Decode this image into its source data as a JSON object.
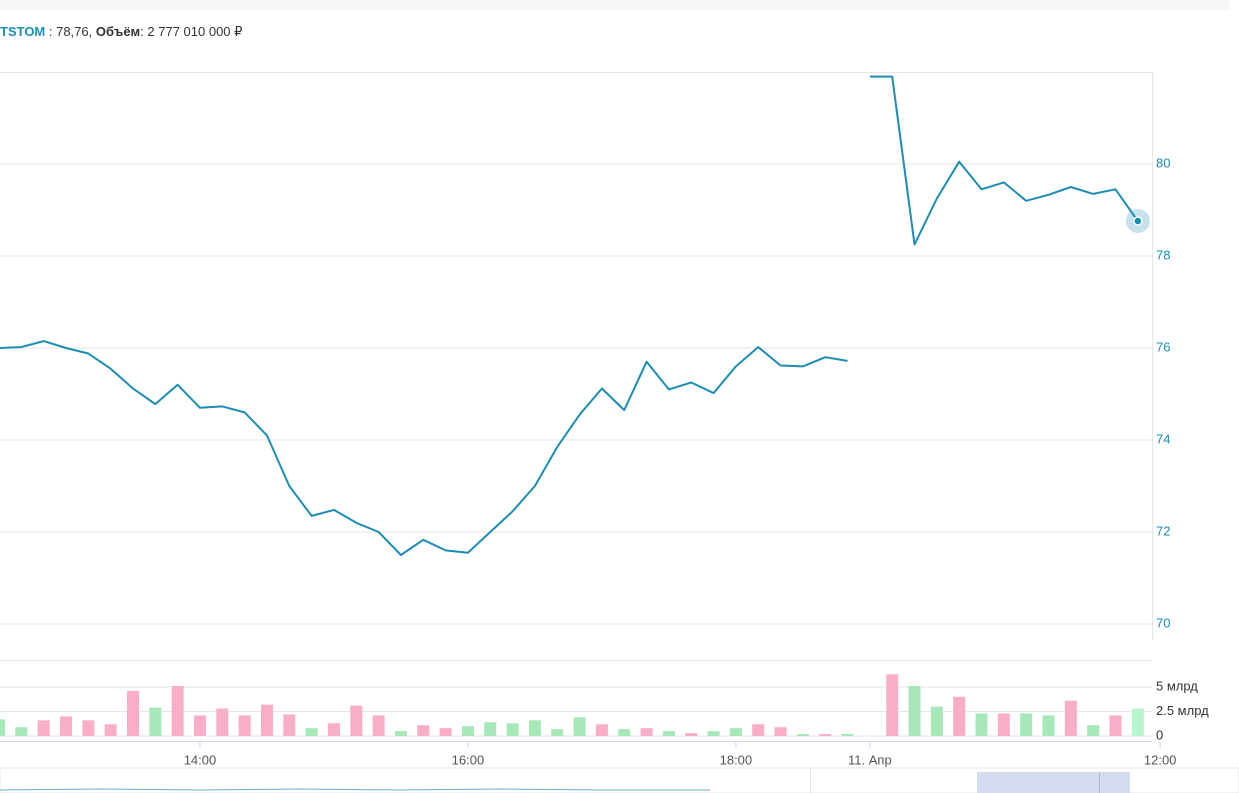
{
  "header": {
    "ticker": "TSTOM",
    "price_text": " : 78,76,",
    "volume_label": "Объём",
    "volume_text": ": 2 777 010 000 ₽"
  },
  "chart_data": [
    {
      "type": "line",
      "ylim": [
        70,
        82
      ],
      "yticks": [
        70,
        72,
        74,
        76,
        78,
        80
      ],
      "grid": true,
      "axis_color": "#1a8bb3",
      "series": [
        {
          "color": "#1b8db5",
          "values": [
            76.0,
            76.02,
            76.15,
            76.0,
            75.88,
            75.55,
            75.12,
            74.78,
            75.2,
            74.7,
            74.73,
            74.6,
            74.1,
            73.0,
            72.35,
            72.48,
            72.2,
            72.0,
            71.5,
            71.83,
            71.6,
            71.55,
            72.0,
            72.45,
            73.0,
            73.85,
            74.55,
            75.12,
            74.65,
            75.7,
            75.1,
            75.25,
            75.02,
            75.6,
            76.02,
            75.62,
            75.6,
            75.8,
            75.72,
            null,
            null,
            null,
            null,
            null,
            null,
            null,
            null,
            null,
            null,
            null,
            null,
            null,
            null
          ]
        },
        {
          "color": "#1b8db5",
          "values": [
            null,
            null,
            null,
            null,
            null,
            null,
            null,
            null,
            null,
            null,
            null,
            null,
            null,
            null,
            null,
            null,
            null,
            null,
            null,
            null,
            null,
            null,
            null,
            null,
            null,
            null,
            null,
            null,
            null,
            null,
            null,
            null,
            null,
            null,
            null,
            null,
            null,
            null,
            null,
            81.9,
            81.9,
            78.25,
            79.25,
            80.05,
            79.45,
            79.6,
            79.2,
            79.33,
            79.5,
            79.35,
            79.45,
            78.76,
            null
          ]
        }
      ]
    },
    {
      "type": "bar",
      "ylim": [
        0,
        7.65
      ],
      "yticks": [
        0,
        {
          "value": 2.5,
          "label": "2.5 млрд"
        },
        {
          "value": 5,
          "label": "5 млрд"
        }
      ],
      "grid": true,
      "categories": [
        null,
        null,
        null,
        null,
        null,
        null,
        null,
        null,
        null,
        "14:00",
        null,
        null,
        null,
        null,
        null,
        null,
        null,
        null,
        null,
        null,
        null,
        "16:00",
        null,
        null,
        null,
        null,
        null,
        null,
        null,
        null,
        null,
        null,
        null,
        "18:00",
        null,
        null,
        null,
        null,
        null,
        "11. Апр",
        null,
        null,
        null,
        null,
        null,
        null,
        null,
        null,
        null,
        null,
        null,
        null,
        "12:00"
      ],
      "values": [
        1.7,
        0.9,
        1.6,
        2.0,
        1.6,
        1.2,
        4.6,
        2.9,
        5.1,
        2.1,
        2.8,
        2.1,
        3.2,
        2.2,
        0.8,
        1.3,
        3.1,
        2.1,
        0.5,
        1.1,
        0.8,
        1.0,
        1.4,
        1.3,
        1.6,
        0.7,
        1.9,
        1.2,
        0.7,
        0.8,
        0.5,
        0.3,
        0.5,
        0.8,
        1.2,
        0.9,
        0.2,
        0.2,
        0.2,
        null,
        6.3,
        5.1,
        3.0,
        4.0,
        2.3,
        2.3,
        2.3,
        2.1,
        3.6,
        1.1,
        2.1,
        2.8,
        null
      ],
      "colors": [
        "#a6e8b8",
        "#a6e8b8",
        "#f9aec8",
        "#f9aec8",
        "#f9aec8",
        "#f9aec8",
        "#f9aec8",
        "#a6e8b8",
        "#f9aec8",
        "#f9aec8",
        "#f9aec8",
        "#f9aec8",
        "#f9aec8",
        "#f9aec8",
        "#a6e8b8",
        "#f9aec8",
        "#f9aec8",
        "#f9aec8",
        "#a6e8b8",
        "#f9aec8",
        "#f9aec8",
        "#a6e8b8",
        "#a6e8b8",
        "#a6e8b8",
        "#a6e8b8",
        "#a6e8b8",
        "#a6e8b8",
        "#f9aec8",
        "#a6e8b8",
        "#f9aec8",
        "#a6e8b8",
        "#f9aec8",
        "#a6e8b8",
        "#a6e8b8",
        "#f9aec8",
        "#f9aec8",
        "#a6e8b8",
        "#f9aec8",
        "#a6e8b8",
        "#a6e8b8",
        "#f9aec8",
        "#a6e8b8",
        "#a6e8b8",
        "#f9aec8",
        "#a6e8b8",
        "#f9aec8",
        "#a6e8b8",
        "#a6e8b8",
        "#f9aec8",
        "#a6e8b8",
        "#f9aec8",
        "#b8f5cc",
        "#a6e8b8"
      ]
    }
  ]
}
